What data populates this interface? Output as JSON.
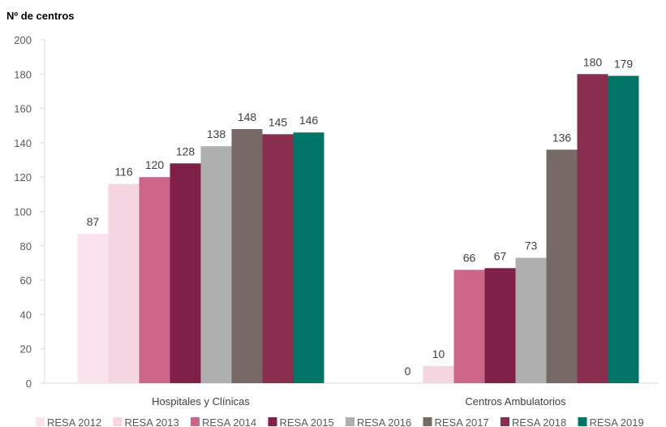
{
  "chart_data": {
    "type": "bar",
    "title": "",
    "ylabel": "Nº de centros",
    "xlabel": "",
    "ylim": [
      0,
      200
    ],
    "yticks": [
      0,
      20,
      40,
      60,
      80,
      100,
      120,
      140,
      160,
      180,
      200
    ],
    "grid": false,
    "legend_position": "bottom",
    "categories": [
      "Hospitales y Clínicas",
      "Centros Ambulatorios"
    ],
    "series": [
      {
        "name": "RESA 2012",
        "color": "#FAE3EC",
        "values": [
          87,
          0
        ]
      },
      {
        "name": "RESA 2013",
        "color": "#F5D5E1",
        "values": [
          116,
          10
        ]
      },
      {
        "name": "RESA 2014",
        "color": "#CC6689",
        "values": [
          120,
          66
        ]
      },
      {
        "name": "RESA 2015",
        "color": "#7F2049",
        "values": [
          128,
          67
        ]
      },
      {
        "name": "RESA 2016",
        "color": "#B0AFAF",
        "values": [
          138,
          73
        ]
      },
      {
        "name": "RESA 2017",
        "color": "#776A66",
        "values": [
          148,
          136
        ]
      },
      {
        "name": "RESA 2018",
        "color": "#8A2E4F",
        "values": [
          145,
          180
        ]
      },
      {
        "name": "RESA 2019",
        "color": "#007567",
        "values": [
          146,
          179
        ]
      }
    ]
  }
}
